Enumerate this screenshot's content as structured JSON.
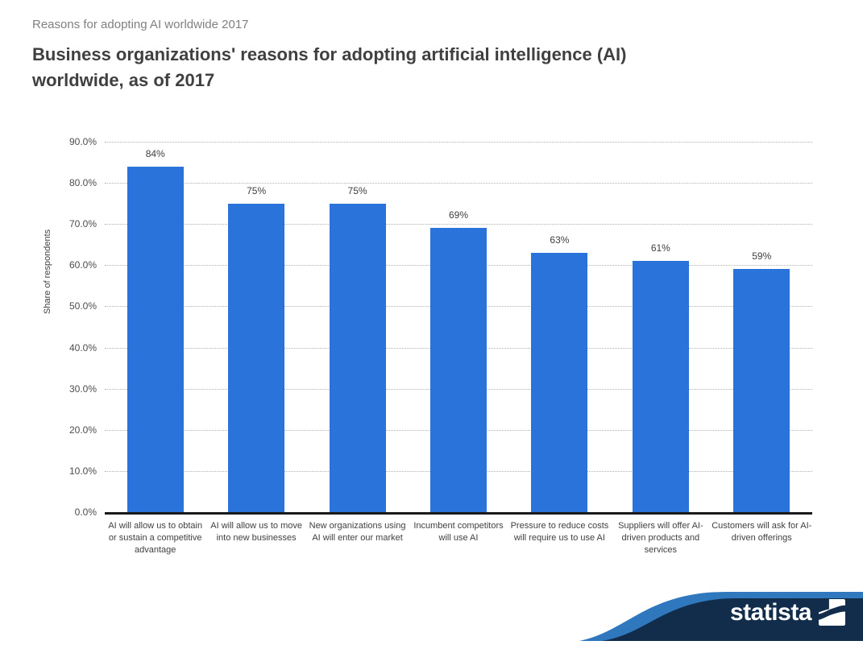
{
  "page": {
    "eyebrow": "Reasons for adopting AI worldwide 2017",
    "title_line1": "Business organizations' reasons for adopting artificial intelligence (AI)",
    "title_line2": "worldwide, as of 2017"
  },
  "chart_data": {
    "type": "bar",
    "title": "Business organizations' reasons for adopting artificial intelligence (AI) worldwide, as of 2017",
    "categories": [
      "AI will allow us to obtain or sustain a competitive advantage",
      "AI will allow us to move into new businesses",
      "New organizations using AI will enter our market",
      "Incumbent competitors will use AI",
      "Pressure to reduce costs will require us to use AI",
      "Suppliers will offer AI-driven products and services",
      "Customers will ask for AI-driven offerings"
    ],
    "values": [
      84,
      75,
      75,
      69,
      63,
      61,
      59
    ],
    "value_labels": [
      "84%",
      "75%",
      "75%",
      "69%",
      "63%",
      "61%",
      "59%"
    ],
    "xlabel": "",
    "ylabel": "Share of respondents",
    "ylim": [
      0,
      90
    ],
    "ytick_step": 10,
    "ytick_labels": [
      "0.0%",
      "10.0%",
      "20.0%",
      "30.0%",
      "40.0%",
      "50.0%",
      "60.0%",
      "70.0%",
      "80.0%",
      "90.0%"
    ],
    "grid": "horizontal-dotted",
    "legend": "none",
    "bar_color": "#2A73DB",
    "gridline_color": "#b0b0b0",
    "axis_color": "#1a1a1a",
    "label_color": "#404040"
  },
  "branding": {
    "logo_text": "statista",
    "navy": "#122C4B",
    "light_blue": "#2F78BE",
    "logo_text_color": "#ffffff"
  }
}
